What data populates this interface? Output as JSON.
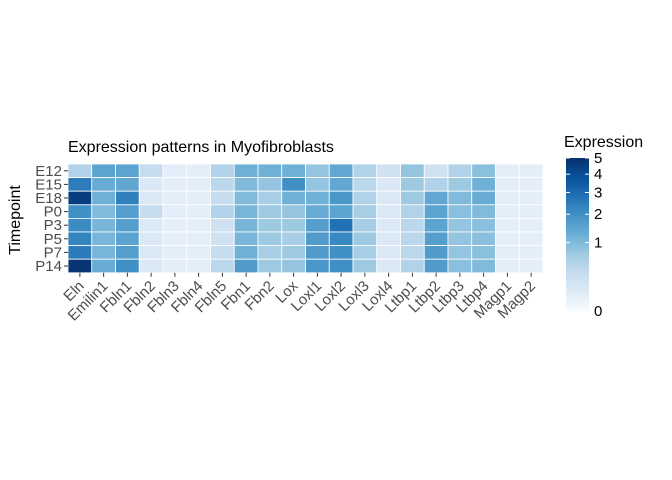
{
  "chart_data": {
    "type": "heatmap",
    "title": "Expression patterns in Myofibroblasts",
    "xlabel": "",
    "ylabel": "Timepoint",
    "x_categories": [
      "Eln",
      "Emilin1",
      "Fbln1",
      "Fbln2",
      "Fbln3",
      "Fbln4",
      "Fbln5",
      "Fbn1",
      "Fbn2",
      "Lox",
      "Loxl1",
      "Loxl2",
      "Loxl3",
      "Loxl4",
      "Ltbp1",
      "Ltbp2",
      "Ltbp3",
      "Ltbp4",
      "Magp1",
      "Magp2"
    ],
    "y_categories": [
      "E12",
      "E15",
      "E18",
      "P0",
      "P3",
      "P5",
      "P7",
      "P14"
    ],
    "values": [
      [
        0.5,
        1.5,
        1.5,
        0.3,
        0.05,
        0.05,
        0.5,
        1.2,
        1.2,
        1.2,
        0.8,
        1.4,
        0.5,
        0.2,
        0.8,
        0.2,
        0.5,
        0.9,
        0.05,
        0.05
      ],
      [
        2.5,
        1.3,
        1.4,
        0.1,
        0.05,
        0.05,
        0.4,
        1.0,
        0.8,
        2.0,
        0.8,
        1.4,
        0.4,
        0.1,
        0.7,
        0.5,
        0.7,
        1.2,
        0.05,
        0.05
      ],
      [
        4.5,
        1.2,
        2.4,
        0.1,
        0.05,
        0.05,
        0.3,
        1.0,
        0.6,
        1.2,
        1.2,
        1.8,
        0.5,
        0.1,
        0.7,
        1.4,
        1.0,
        1.3,
        0.05,
        0.05
      ],
      [
        2.0,
        1.0,
        1.6,
        0.3,
        0.05,
        0.05,
        0.5,
        1.1,
        0.7,
        0.8,
        1.3,
        1.5,
        0.6,
        0.1,
        0.5,
        1.5,
        0.9,
        1.0,
        0.05,
        0.05
      ],
      [
        2.1,
        1.1,
        1.6,
        0.1,
        0.05,
        0.05,
        0.2,
        1.1,
        0.7,
        0.7,
        1.6,
        2.8,
        0.6,
        0.1,
        0.4,
        1.5,
        0.8,
        0.9,
        0.05,
        0.05
      ],
      [
        2.3,
        1.1,
        1.5,
        0.1,
        0.05,
        0.05,
        0.2,
        1.1,
        0.7,
        0.6,
        1.7,
        2.2,
        0.7,
        0.1,
        0.4,
        1.6,
        0.8,
        0.9,
        0.05,
        0.05
      ],
      [
        2.5,
        1.1,
        1.6,
        0.1,
        0.05,
        0.05,
        0.3,
        1.2,
        0.6,
        0.7,
        1.7,
        2.0,
        0.6,
        0.1,
        0.4,
        1.7,
        0.8,
        0.9,
        0.05,
        0.05
      ],
      [
        4.8,
        1.3,
        2.0,
        0.1,
        0.05,
        0.05,
        0.4,
        1.7,
        0.7,
        0.8,
        1.8,
        2.0,
        0.7,
        0.1,
        0.5,
        1.7,
        0.9,
        1.0,
        0.05,
        0.05
      ]
    ],
    "color_scale": {
      "title": "Expression",
      "transform": "sqrt",
      "range": [
        0,
        5
      ],
      "breaks": [
        0,
        1,
        2,
        3,
        4,
        5
      ],
      "low_color": "#f7fbff",
      "high_color": "#08306b"
    },
    "legend_position": "right",
    "grid": false
  }
}
